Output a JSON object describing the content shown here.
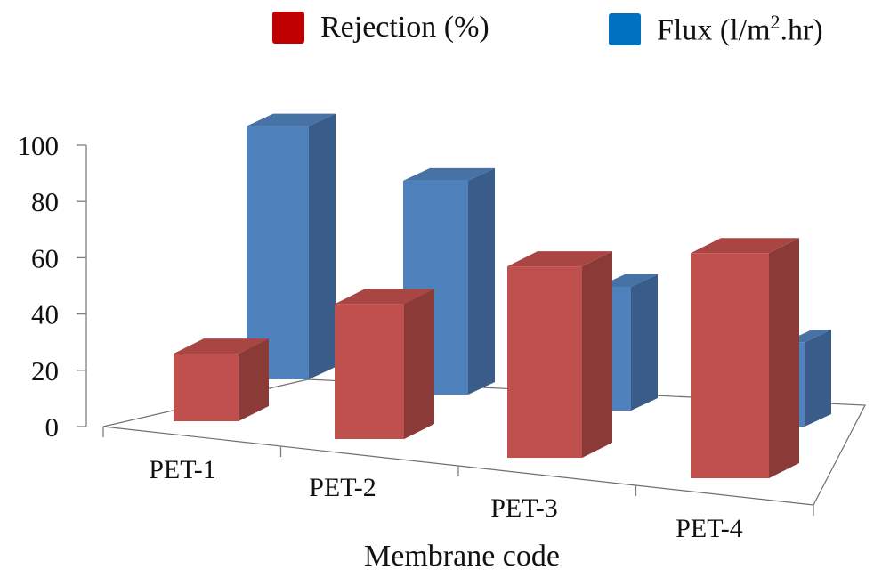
{
  "chart_data": {
    "type": "bar",
    "subtype": "3d-clustered",
    "categories": [
      "PET-1",
      "PET-2",
      "PET-3",
      "PET-4"
    ],
    "series": [
      {
        "name": "Rejection (%)",
        "color": "#c0504d",
        "values": [
          24,
          48,
          68,
          80
        ]
      },
      {
        "name": "Flux (l/m2.hr)",
        "color": "#4f81bd",
        "values": [
          90,
          76,
          44,
          30
        ]
      }
    ],
    "xlabel": "Membrane code",
    "ylabel": "",
    "ylim": [
      0,
      100
    ],
    "yticks": [
      0,
      20,
      40,
      60,
      80,
      100
    ],
    "legend": "top-center",
    "grid": false
  },
  "legend": {
    "rejection_label": "Rejection (%)",
    "flux_label_main": "Flux (l/m",
    "flux_label_sup": "2",
    "flux_label_end": ".hr)"
  }
}
